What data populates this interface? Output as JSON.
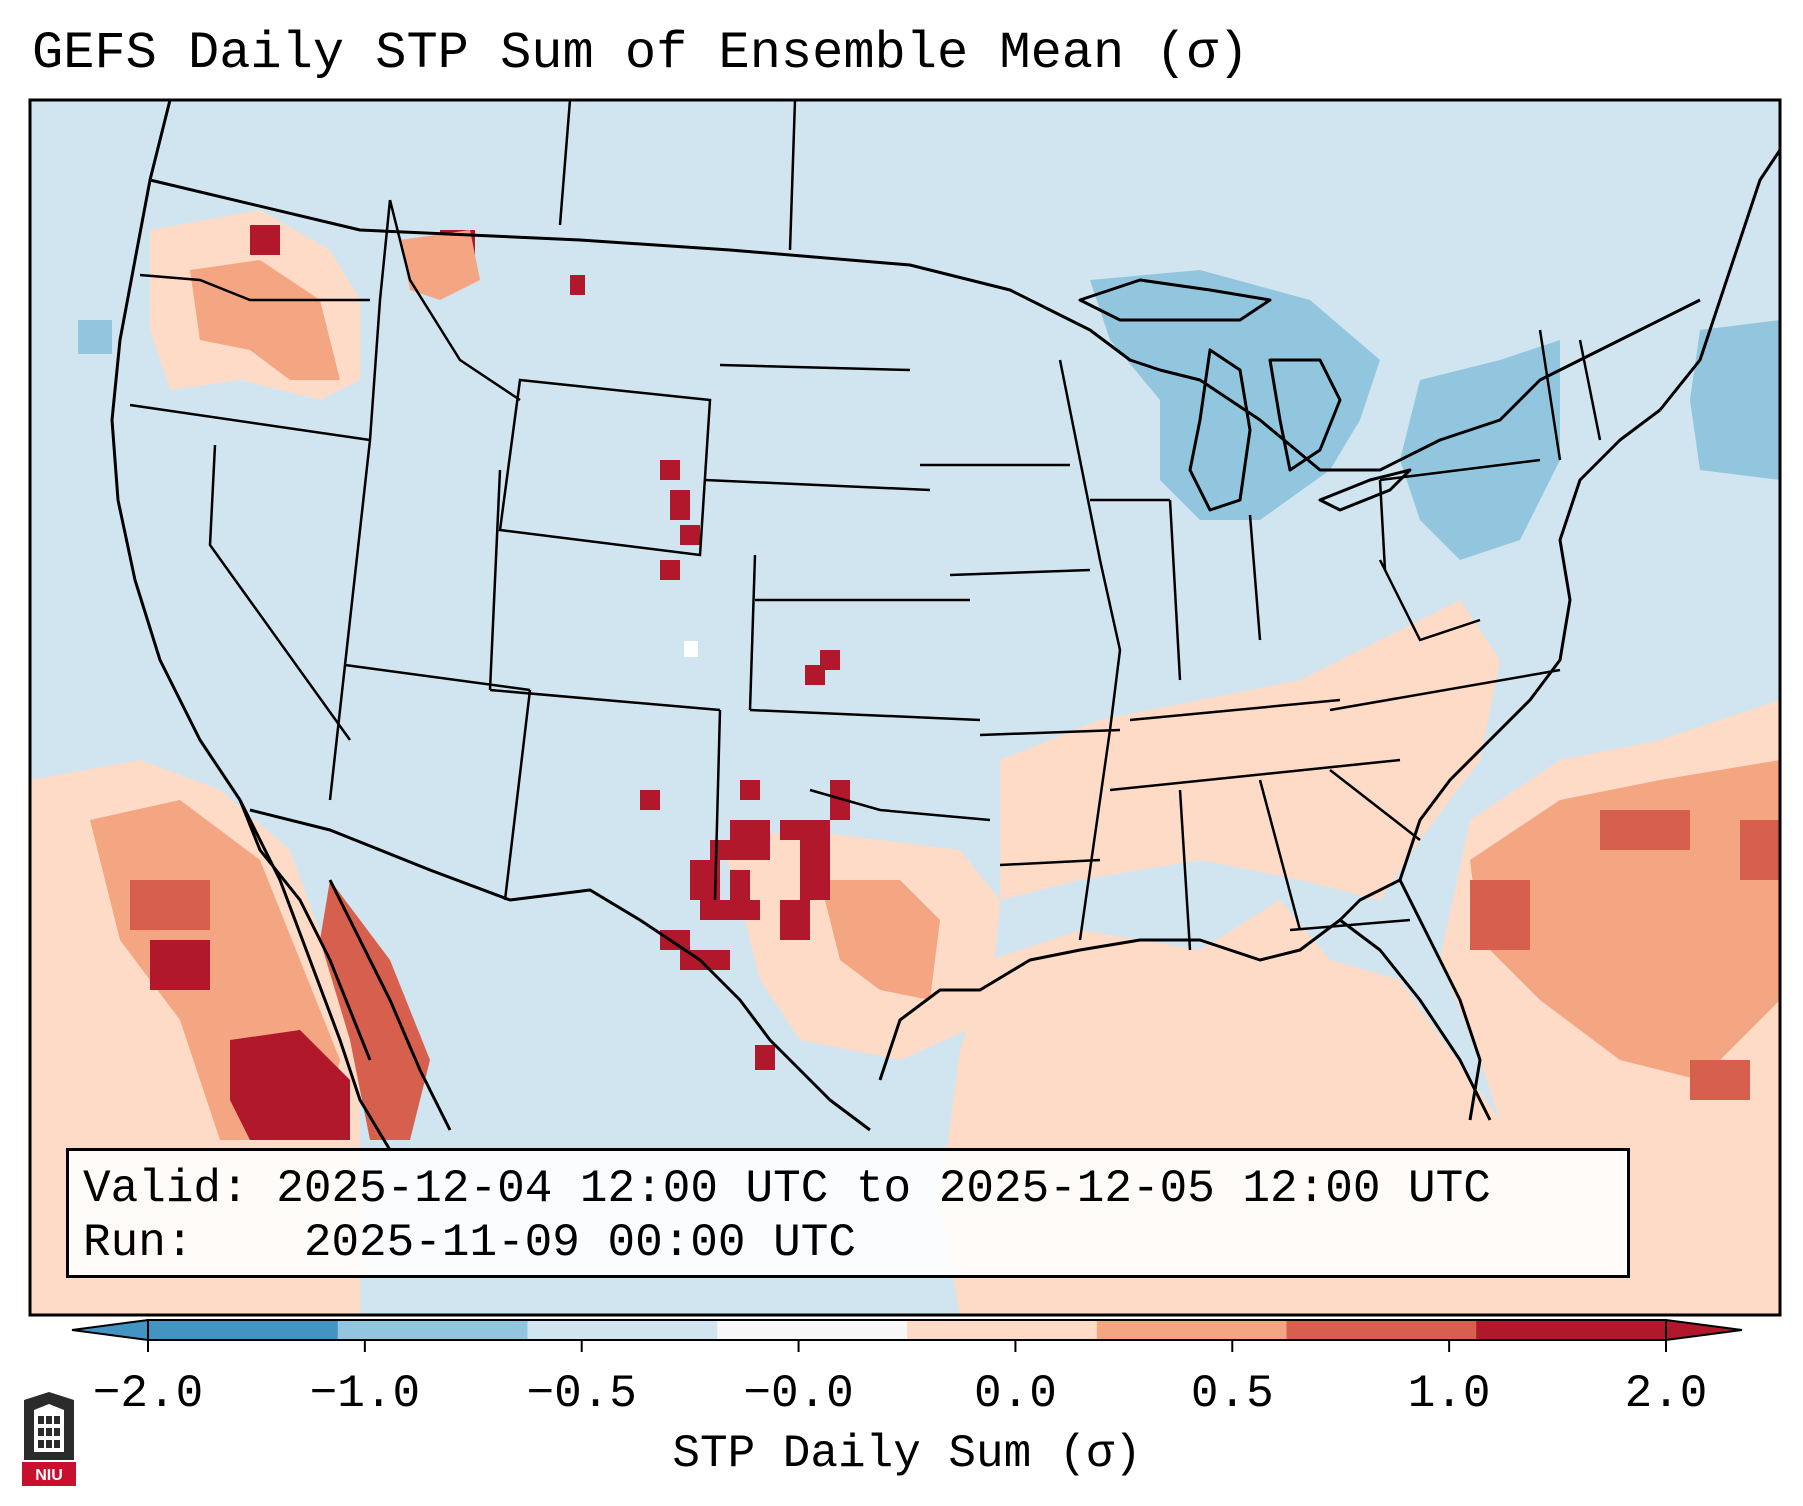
{
  "title": "GEFS Daily STP Sum of Ensemble Mean (σ)",
  "valid_label": "Valid:",
  "valid_text": "2025-12-04 12:00 UTC to 2025-12-05 12:00 UTC",
  "run_label": "Run:",
  "run_text": "2025-11-09 00:00 UTC",
  "colorbar": {
    "title": "STP Daily Sum (σ)",
    "ticks": [
      "−2.0",
      "−1.0",
      "−0.5",
      "−0.0",
      "0.0",
      "0.5",
      "1.0",
      "2.0"
    ],
    "bin_colors": [
      "#4393c3",
      "#92c5de",
      "#d1e5f0",
      "#f7f7f7",
      "#fddbc7",
      "#f4a582",
      "#d6604d",
      "#b2182b"
    ],
    "extend": "both"
  },
  "map": {
    "background_color": "#d1e5f0",
    "land_outline_color": "#000000",
    "features": [
      {
        "label": "Southern Plains (TX panhandle / OK)",
        "category": 2.0,
        "color": "#b2182b"
      },
      {
        "label": "Gulf Coast & Southeast",
        "category": 0.0,
        "color": "#fddbc7"
      },
      {
        "label": "Western Atlantic",
        "category": 1.0,
        "color": "#d6604d"
      },
      {
        "label": "Eastern Pacific off Baja",
        "category": 2.0,
        "color": "#b2182b"
      },
      {
        "label": "Pacific Northwest",
        "category": 0.5,
        "color": "#f4a582"
      },
      {
        "label": "Great Lakes",
        "category": -1.0,
        "color": "#92c5de"
      },
      {
        "label": "Northeast",
        "category": -1.0,
        "color": "#92c5de"
      }
    ]
  },
  "logo": {
    "text": "NIU",
    "alt": "Northern Illinois University logo"
  }
}
